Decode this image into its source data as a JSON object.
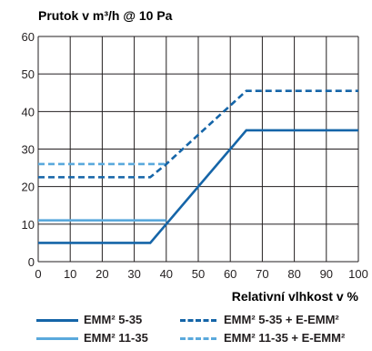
{
  "chart_data": {
    "type": "line",
    "title": "Prutok v m³/h @ 10 Pa",
    "xlabel": "Relativní vlhkost v %",
    "ylabel": "",
    "xlim": [
      0,
      100
    ],
    "ylim": [
      0,
      60
    ],
    "x_ticks": [
      "0",
      "10",
      "20",
      "30",
      "40",
      "50",
      "60",
      "70",
      "80",
      "90",
      "100"
    ],
    "y_ticks": [
      "0",
      "10",
      "20",
      "30",
      "40",
      "50",
      "60"
    ],
    "grid": true,
    "legend_position": "bottom",
    "series": [
      {
        "name": "EMM² 5-35",
        "color": "#1565a8",
        "style": "solid",
        "x": [
          0,
          35,
          65,
          100
        ],
        "y": [
          5,
          5,
          35,
          35
        ]
      },
      {
        "name": "EMM² 11-35",
        "color": "#5aa9dc",
        "style": "solid",
        "x": [
          0,
          40
        ],
        "y": [
          11,
          11
        ]
      },
      {
        "name": "EMM² 5-35 + E-EMM²",
        "color": "#1565a8",
        "style": "dashed",
        "x": [
          0,
          35,
          40,
          65,
          100
        ],
        "y": [
          22.5,
          22.5,
          26,
          45.5,
          45.5
        ]
      },
      {
        "name": "EMM² 11-35 + E-EMM²",
        "color": "#5aa9dc",
        "style": "dashed",
        "x": [
          0,
          40
        ],
        "y": [
          26,
          26
        ]
      }
    ]
  }
}
